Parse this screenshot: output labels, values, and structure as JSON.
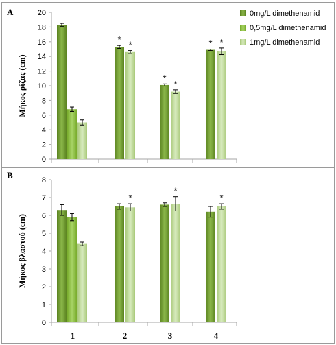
{
  "colors": {
    "series_dark": "#6e9a2c",
    "series_mid": "#8cbf3f",
    "series_light": "#c2d99b",
    "axis": "#a6a6a6",
    "frame": "#9a9a9a"
  },
  "legend": {
    "entries": [
      "0mg/L dimethenamid",
      "0,5mg/L dimethenamid",
      "1mg/L dimethenamid"
    ]
  },
  "chart_data": [
    {
      "type": "bar",
      "panel_label": "A",
      "ylabel": "Μήκος ρίζας (cm)",
      "xlabel": "",
      "ylim": [
        0,
        20
      ],
      "yticks": [
        0,
        2,
        4,
        6,
        8,
        10,
        12,
        14,
        16,
        18,
        20
      ],
      "categories": [
        "",
        "",
        "",
        ""
      ],
      "series": [
        {
          "name": "0mg/L dimethenamid",
          "values": [
            18.3,
            15.3,
            10.1,
            14.9
          ],
          "errors": [
            0.2,
            0.2,
            0.15,
            0.1
          ],
          "sig": [
            false,
            true,
            true,
            true
          ]
        },
        {
          "name": "0,5mg/L dimethenamid",
          "values": [
            6.8,
            null,
            null,
            null
          ],
          "errors": [
            0.3,
            0,
            0,
            0
          ],
          "sig": [
            false,
            false,
            false,
            false
          ]
        },
        {
          "name": "1mg/L dimethenamid",
          "values": [
            5.0,
            14.6,
            9.2,
            14.7
          ],
          "errors": [
            0.35,
            0.2,
            0.25,
            0.45
          ],
          "sig": [
            false,
            true,
            true,
            true
          ]
        }
      ],
      "grid": false
    },
    {
      "type": "bar",
      "panel_label": "B",
      "ylabel": "Μήκος βλαστού (cm)",
      "xlabel": "",
      "ylim": [
        0,
        8
      ],
      "yticks": [
        0,
        1,
        2,
        3,
        4,
        5,
        6,
        7,
        8
      ],
      "categories": [
        "1",
        "2",
        "3",
        "4"
      ],
      "series": [
        {
          "name": "0mg/L dimethenamid",
          "values": [
            6.3,
            6.5,
            6.6,
            6.2
          ],
          "errors": [
            0.3,
            0.15,
            0.1,
            0.3
          ],
          "sig": [
            false,
            false,
            false,
            false
          ]
        },
        {
          "name": "0,5mg/L dimethenamid",
          "values": [
            5.9,
            null,
            null,
            null
          ],
          "errors": [
            0.2,
            0,
            0,
            0
          ],
          "sig": [
            false,
            false,
            false,
            false
          ]
        },
        {
          "name": "1mg/L dimethenamid",
          "values": [
            4.4,
            6.45,
            6.65,
            6.5
          ],
          "errors": [
            0.1,
            0.2,
            0.4,
            0.15
          ],
          "sig": [
            false,
            true,
            true,
            true
          ]
        }
      ],
      "grid": false
    }
  ]
}
